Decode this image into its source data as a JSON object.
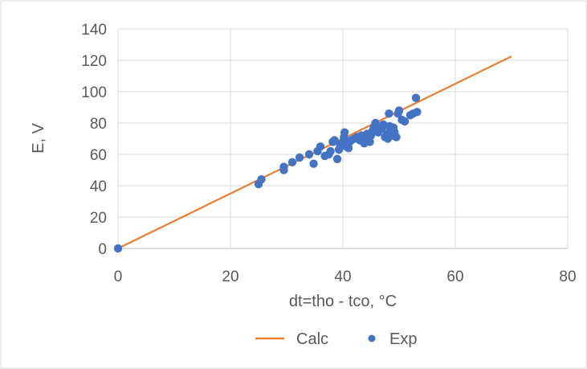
{
  "chart_data": {
    "type": "scatter",
    "title": "",
    "xlabel": "dt=tho - tco, °C",
    "ylabel": "E, V",
    "xlim": [
      0,
      80
    ],
    "ylim": [
      0,
      140
    ],
    "x_ticks": [
      "0",
      "20",
      "40",
      "60",
      "80"
    ],
    "y_ticks": [
      "0",
      "20",
      "40",
      "60",
      "80",
      "100",
      "120",
      "140"
    ],
    "grid": true,
    "legend_position": "bottom",
    "series": [
      {
        "name": "Calc",
        "kind": "line",
        "color": "#ED7D31",
        "points": [
          [
            0,
            0
          ],
          [
            70,
            122.5
          ]
        ]
      },
      {
        "name": "Exp",
        "kind": "scatter",
        "color": "#4472C4",
        "points": [
          [
            0,
            0
          ],
          [
            25,
            41
          ],
          [
            25.5,
            44
          ],
          [
            29.5,
            50
          ],
          [
            29.5,
            52
          ],
          [
            31,
            55
          ],
          [
            32.3,
            58
          ],
          [
            34,
            60
          ],
          [
            34.8,
            54
          ],
          [
            35.5,
            62
          ],
          [
            36,
            65
          ],
          [
            36.8,
            59
          ],
          [
            37.5,
            60
          ],
          [
            37.8,
            62
          ],
          [
            38.2,
            68
          ],
          [
            38.5,
            69
          ],
          [
            39,
            57
          ],
          [
            39.3,
            63
          ],
          [
            39.5,
            66
          ],
          [
            40,
            68
          ],
          [
            40.2,
            71
          ],
          [
            40.3,
            74
          ],
          [
            40.6,
            65
          ],
          [
            41,
            64
          ],
          [
            41.2,
            68
          ],
          [
            41.5,
            69
          ],
          [
            42,
            70
          ],
          [
            42.5,
            71
          ],
          [
            43,
            69
          ],
          [
            43.3,
            72
          ],
          [
            43.8,
            67
          ],
          [
            44,
            70
          ],
          [
            44.3,
            73
          ],
          [
            44.5,
            71
          ],
          [
            44.8,
            68
          ],
          [
            45,
            72
          ],
          [
            45.3,
            75
          ],
          [
            45.5,
            77
          ],
          [
            45.8,
            80
          ],
          [
            46,
            78
          ],
          [
            46.3,
            74
          ],
          [
            46.6,
            76
          ],
          [
            47,
            77
          ],
          [
            47.2,
            79
          ],
          [
            47.5,
            71
          ],
          [
            47.8,
            73
          ],
          [
            48,
            70
          ],
          [
            48.2,
            86
          ],
          [
            48.3,
            78
          ],
          [
            48.5,
            76
          ],
          [
            48.8,
            72
          ],
          [
            49,
            77
          ],
          [
            49.2,
            74
          ],
          [
            49.5,
            71
          ],
          [
            49.8,
            86
          ],
          [
            50,
            88
          ],
          [
            50.5,
            82
          ],
          [
            51,
            81
          ],
          [
            52,
            85
          ],
          [
            52.5,
            86
          ],
          [
            53,
            96
          ],
          [
            53.2,
            87
          ]
        ]
      }
    ]
  }
}
